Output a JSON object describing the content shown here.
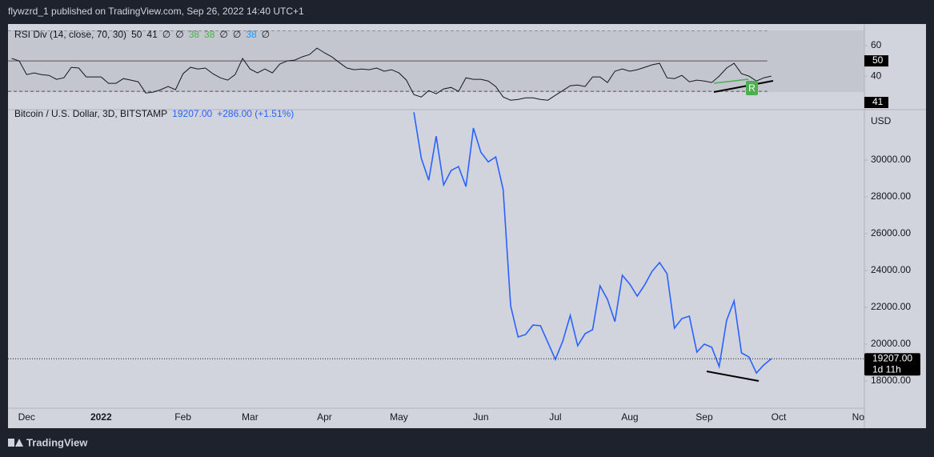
{
  "header": "flywzrd_1 published on TradingView.com, Sep 26, 2022 14:40 UTC+1",
  "footer": "TradingView",
  "chart_data": [
    {
      "type": "line",
      "name": "rsi",
      "legend": [
        {
          "text": "RSI Div (14, close, 70, 30)",
          "color": "#131722"
        },
        {
          "text": "50",
          "color": "#131722"
        },
        {
          "text": "41",
          "color": "#131722"
        },
        {
          "text": "∅",
          "color": "#131722"
        },
        {
          "text": "∅",
          "color": "#131722"
        },
        {
          "text": "38",
          "color": "#4caf50"
        },
        {
          "text": "38",
          "color": "#4caf50"
        },
        {
          "text": "∅",
          "color": "#131722"
        },
        {
          "text": "∅",
          "color": "#131722"
        },
        {
          "text": "38",
          "color": "#2196f3"
        },
        {
          "text": "∅",
          "color": "#131722"
        }
      ],
      "series": [
        {
          "color": "#131722",
          "values": [
            51.6,
            50,
            41,
            42.1,
            41,
            40.5,
            37.9,
            38.9,
            45.8,
            45.3,
            39.5,
            39.5,
            39.5,
            35.3,
            35.3,
            38.4,
            37.4,
            36.3,
            28.9,
            29.5,
            31.1,
            33.2,
            31.1,
            41.6,
            45.8,
            44.7,
            45.3,
            41.6,
            38.9,
            37.4,
            41,
            51.6,
            44.7,
            42.1,
            44.7,
            42.1,
            47.9,
            50,
            50.5,
            52.6,
            54.2,
            58.4,
            55.3,
            52.6,
            48.9,
            45.3,
            44.2,
            44.7,
            44.2,
            45.3,
            43.2,
            44.2,
            42.1,
            37.4,
            27.9,
            26.3,
            30.5,
            28.4,
            31.6,
            32.6,
            30,
            38.9,
            37.9,
            37.9,
            36.8,
            33.2,
            26.3,
            24.2,
            24.7,
            25.8,
            25.8,
            24.7,
            24.2,
            27.4,
            30.5,
            33.7,
            34.2,
            33.2,
            39.5,
            39.5,
            35.8,
            43.2,
            44.7,
            43.2,
            44.2,
            45.8,
            47.4,
            48.4,
            38.9,
            38.4,
            40.5,
            36.3,
            37.4,
            36.8,
            35.8,
            40,
            45.3,
            48.4,
            41.6,
            40,
            36.8,
            38.9,
            40,
            null,
            null,
            null,
            null,
            null,
            null,
            null,
            null,
            null,
            null,
            null,
            null
          ]
        }
      ],
      "levels": [
        70,
        50,
        30
      ],
      "level_styles": [
        "dashed",
        "solid",
        "dashed"
      ],
      "ylim": [
        18,
        70
      ],
      "yticks": [
        60,
        40
      ]
    },
    {
      "type": "line",
      "name": "price",
      "legend": [
        {
          "text": "Bitcoin / U.S. Dollar, 3D, BITSTAMP",
          "color": "#131722"
        },
        {
          "text": "19207.00",
          "color": "#2962ff"
        },
        {
          "text": "+286.00 (+1.51%)",
          "color": "#2962ff"
        }
      ],
      "axis_label": "USD",
      "countdown": "1d 11h",
      "categories": [
        null,
        null,
        "Dec",
        null,
        null,
        null,
        null,
        null,
        null,
        null,
        null,
        null,
        "2022",
        null,
        null,
        null,
        null,
        null,
        null,
        null,
        null,
        null,
        null,
        "Feb",
        null,
        null,
        null,
        null,
        null,
        null,
        null,
        null,
        "Mar",
        null,
        null,
        null,
        null,
        null,
        null,
        null,
        null,
        null,
        "Apr",
        null,
        null,
        null,
        null,
        null,
        null,
        null,
        null,
        null,
        "May",
        null,
        null,
        null,
        null,
        null,
        null,
        null,
        null,
        null,
        null,
        "Jun",
        null,
        null,
        null,
        null,
        null,
        null,
        null,
        null,
        null,
        "Jul",
        null,
        null,
        null,
        null,
        null,
        null,
        null,
        null,
        null,
        "Aug",
        null,
        null,
        null,
        null,
        null,
        null,
        null,
        null,
        null,
        "Sep",
        null,
        null,
        null,
        null,
        null,
        null,
        null,
        null,
        null,
        "Oct",
        null,
        null,
        null,
        null,
        null,
        null,
        null,
        null,
        null,
        null,
        "Nov"
      ],
      "series": [
        {
          "color": "#2962ff",
          "values": [
            null,
            null,
            null,
            null,
            null,
            null,
            null,
            null,
            null,
            null,
            null,
            null,
            null,
            null,
            null,
            null,
            null,
            null,
            null,
            null,
            null,
            null,
            null,
            null,
            null,
            null,
            null,
            null,
            null,
            null,
            null,
            null,
            null,
            null,
            null,
            null,
            null,
            null,
            null,
            null,
            null,
            null,
            null,
            null,
            null,
            null,
            null,
            null,
            null,
            null,
            null,
            null,
            null,
            null,
            32600,
            30100,
            28900,
            31300,
            28650,
            29430,
            29650,
            28560,
            31740,
            30430,
            29900,
            30170,
            28390,
            22090,
            20390,
            20520,
            21040,
            21000,
            20090,
            19170,
            20170,
            21560,
            19910,
            20570,
            20780,
            23170,
            22430,
            21220,
            23740,
            23260,
            22610,
            23220,
            23960,
            24430,
            23830,
            20870,
            21390,
            21520,
            19570,
            20000,
            19830,
            18780,
            21300,
            22350,
            19520,
            19300,
            18430,
            18870,
            19207,
            null,
            null,
            null,
            null,
            null,
            null,
            null,
            null,
            null,
            null,
            null,
            null
          ]
        }
      ],
      "ylim": [
        16520,
        32740
      ],
      "yticks": [
        {
          "value": 18000,
          "label": "18000.00"
        },
        {
          "value": 20000,
          "label": "20000.00"
        },
        {
          "value": 22000,
          "label": "22000.00"
        },
        {
          "value": 24000,
          "label": "24000.00"
        },
        {
          "value": 26000,
          "label": "26000.00"
        },
        {
          "value": 28000,
          "label": "28000.00"
        },
        {
          "value": 30000,
          "label": "30000.00"
        }
      ]
    }
  ]
}
